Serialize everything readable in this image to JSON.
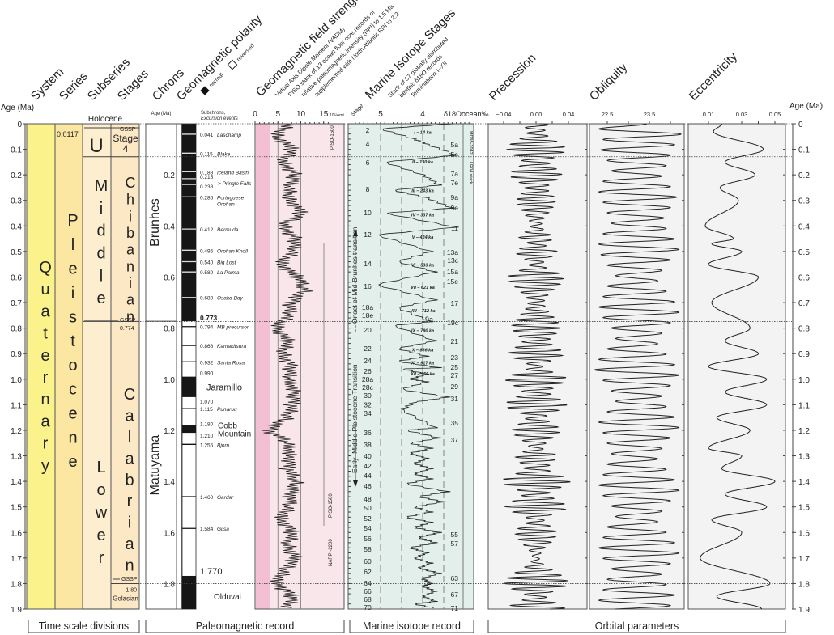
{
  "headers": {
    "system": "System",
    "series": "Series",
    "subseries": "Subseries",
    "stages": "Stages",
    "chrons": "Chrons",
    "polarity": "Geomagnetic polarity",
    "normal": "normal",
    "reversed": "reversed",
    "field": "Geomagnetic field strength",
    "field_sub": [
      "Virtual Axis Dipole Moment (VADM)",
      "PISO stack of 13 ocean floor core records of",
      "relative paleomagnetic intensity (RPI) to 1.5 Ma",
      "supplemented with North Atlantic RPI to 2.2"
    ],
    "mis": "Marine Isotope Stages",
    "mis_sub": [
      "Stack of 57 globally distributed",
      "benthic δ18O records",
      "Terminations I–XII"
    ],
    "precession": "Precession",
    "obliquity": "Obliquity",
    "eccentricity": "Eccentricity"
  },
  "axis": {
    "label": "Age (Ma)",
    "ticks": [
      "0",
      "0.1",
      "0.2",
      "0.3",
      "0.4",
      "0.5",
      "0.6",
      "0.7",
      "0.8",
      "0.9",
      "1.0",
      "1.1",
      "1.2",
      "1.3",
      "1.4",
      "1.5",
      "1.6",
      "1.7",
      "1.8",
      "1.9"
    ]
  },
  "timescale": {
    "holocene": "Holocene",
    "holocene_base": "0.0117",
    "system": "Quaternary",
    "series": "Pleistocene",
    "subseries": [
      {
        "label": "U",
        "from": 0,
        "to": 0.129
      },
      {
        "label": "Middle",
        "from": 0.129,
        "to": 0.774
      },
      {
        "label": "Lower",
        "from": 0.774,
        "to": 1.9
      }
    ],
    "stages": [
      {
        "label": "Stage 4",
        "from": 0,
        "to": 0.129
      },
      {
        "label": "Chibanian",
        "from": 0.129,
        "to": 0.774
      },
      {
        "label": "Calabrian",
        "from": 0.774,
        "to": 1.8
      },
      {
        "label": "Gelasian",
        "from": 1.8,
        "to": 1.9
      }
    ],
    "gssp": "GSSP",
    "gssp_0774": "0.774",
    "gssp_180": "1.80"
  },
  "paleomag": {
    "age_label": "Age (Ma)",
    "age_ticks": [
      "0.2",
      "0.4",
      "0.6",
      "0.8",
      "1.0",
      "1.2",
      "1.4",
      "1.6",
      "1.8"
    ],
    "subchron_header": [
      "Subchrons,",
      "Excursion events"
    ],
    "chrons": [
      {
        "label": "Brunhes",
        "from": 0,
        "to": 0.773
      },
      {
        "label": "Matuyama",
        "from": 0.773,
        "to": 1.9
      }
    ],
    "normal_intervals": [
      [
        0,
        0.773
      ],
      [
        0.99,
        1.07
      ],
      [
        1.18,
        1.21
      ],
      [
        1.77,
        1.9
      ]
    ],
    "events": [
      {
        "age": "0.041",
        "name": "Laschamp"
      },
      {
        "age": "0.115",
        "name": "Blake"
      },
      {
        "age": "0.188",
        "name": "Iceland Basin"
      },
      {
        "age": "0.215",
        "name": ""
      },
      {
        "age": "0.238",
        "name": "Pringle Falls"
      },
      {
        "age": "0.286",
        "name": "Portuguese Orphan"
      },
      {
        "age": "0.412",
        "name": "Bermuda"
      },
      {
        "age": "0.495",
        "name": "Orphan Knoll"
      },
      {
        "age": "0.540",
        "name": "Big Lost"
      },
      {
        "age": "0.580",
        "name": "La Palma"
      },
      {
        "age": "0.680",
        "name": "Osaka Bay"
      },
      {
        "age": "0.794",
        "name": "MB precursor"
      },
      {
        "age": "0.868",
        "name": "Kamakitsura"
      },
      {
        "age": "0.932",
        "name": "Santa Rosa"
      },
      {
        "age": "1.115",
        "name": "Punaruu"
      },
      {
        "age": "1.255",
        "name": "Bjorn"
      },
      {
        "age": "1.460",
        "name": "Gardar"
      },
      {
        "age": "1.584",
        "name": "Gilsa"
      }
    ],
    "boundaries": [
      {
        "age": "0.773"
      },
      {
        "age": "0.990"
      },
      {
        "age": "1.070"
      },
      {
        "age": "1.180"
      },
      {
        "age": "1.210"
      },
      {
        "age": "1.770"
      }
    ],
    "subchrons": [
      {
        "name": "Jaramillo",
        "age": 1.03
      },
      {
        "name": "Cobb",
        "age": 1.18
      },
      {
        "name": "Mountain",
        "age": 1.212
      },
      {
        "name": "Olduvai",
        "age": 1.85
      }
    ]
  },
  "field": {
    "ticks": [
      "0",
      "5",
      "10",
      "15"
    ],
    "unit": "10²²Am²",
    "labels": [
      "PISO-1500",
      "NARPI-2200",
      "PISO-1500"
    ]
  },
  "isotope": {
    "stage_label": "Stage",
    "ticks": [
      "5",
      "4"
    ],
    "unit": "δ18Oocean‰",
    "records": [
      "MD95-2042",
      "LR04 stack"
    ],
    "transitions": [
      "Onset of Mid-Brunhes transition",
      "Early–Middle Pleistocene Transition"
    ],
    "left_stages": [
      [
        "2",
        0.022
      ],
      [
        "4",
        0.076
      ],
      [
        "6",
        0.149
      ],
      [
        "8",
        0.253
      ],
      [
        "10",
        0.345
      ],
      [
        "12",
        0.431
      ],
      [
        "14",
        0.545
      ],
      [
        "16",
        0.633
      ],
      [
        "18a",
        0.716
      ],
      [
        "18e",
        0.744
      ],
      [
        "20",
        0.804
      ],
      [
        "22",
        0.877
      ],
      [
        "24",
        0.924
      ],
      [
        "26",
        0.966
      ],
      [
        "28a",
        0.991
      ],
      [
        "28c",
        1.016
      ],
      [
        "30",
        1.048
      ],
      [
        "32",
        1.098
      ],
      [
        "34",
        1.13
      ],
      [
        "36",
        1.206
      ],
      [
        "38",
        1.254
      ],
      [
        "40",
        1.298
      ],
      [
        "42",
        1.336
      ],
      [
        "44",
        1.374
      ],
      [
        "46",
        1.415
      ],
      [
        "48",
        1.466
      ],
      [
        "50",
        1.501
      ],
      [
        "52",
        1.542
      ],
      [
        "54",
        1.58
      ],
      [
        "56",
        1.621
      ],
      [
        "58",
        1.662
      ],
      [
        "60",
        1.71
      ],
      [
        "62",
        1.751
      ],
      [
        "64",
        1.795
      ],
      [
        "66",
        1.82
      ],
      [
        "68",
        1.849
      ],
      [
        "70",
        1.874
      ]
    ],
    "right_stages": [
      [
        "5a",
        0.079
      ],
      [
        "5e",
        0.117
      ],
      [
        "7a",
        0.193
      ],
      [
        "7e",
        0.228
      ],
      [
        "9a",
        0.285
      ],
      [
        "9e",
        0.326
      ],
      [
        "11",
        0.405
      ],
      [
        "13a",
        0.5
      ],
      [
        "13c",
        0.529
      ],
      [
        "15a",
        0.576
      ],
      [
        "15e",
        0.614
      ],
      [
        "17",
        0.7
      ],
      [
        "19c",
        0.776
      ],
      [
        "21",
        0.849
      ],
      [
        "23",
        0.912
      ],
      [
        "25",
        0.95
      ],
      [
        "27",
        0.981
      ],
      [
        "29",
        1.026
      ],
      [
        "31",
        1.073
      ],
      [
        "35",
        1.168
      ],
      [
        "37",
        1.235
      ],
      [
        "55",
        1.605
      ],
      [
        "57",
        1.64
      ],
      [
        "63",
        1.776
      ],
      [
        "67",
        1.839
      ],
      [
        "71",
        1.893
      ]
    ],
    "inner_stages": [
      [
        "19a",
        0.767
      ]
    ],
    "terminations": [
      [
        "I – 14 ka",
        0.014
      ],
      [
        "II – 130 ka",
        0.13
      ],
      [
        "III – 243 ka",
        0.243
      ],
      [
        "IV – 337 ka",
        0.337
      ],
      [
        "V – 424 ka",
        0.424
      ],
      [
        "VI – 533 ka",
        0.533
      ],
      [
        "VII – 621 ka",
        0.621
      ],
      [
        "VIII – 712 ka",
        0.712
      ],
      [
        "IX – 790 ka",
        0.79
      ],
      [
        "X – 866 ka",
        0.866
      ],
      [
        "XI – 917 ka",
        0.917
      ],
      [
        "XII – 959 ka",
        0.959
      ]
    ]
  },
  "orbital": {
    "precession_ticks": [
      "−0.04",
      "0.00",
      "0.04"
    ],
    "obliquity_ticks": [
      "22.5",
      "23.5"
    ],
    "eccentricity_ticks": [
      "0.01",
      "0.03",
      "0.05"
    ]
  },
  "groups": [
    "Time scale divisions",
    "Paleomagnetic record",
    "Marine isotope record",
    "Orbital parameters"
  ],
  "colors": {
    "system": "#fcf28c",
    "series": "#fbe6a2",
    "subseries": "#fdeed0",
    "stages": "#fde8c6",
    "field_bg": "#f8e6ea",
    "field_strip": "#f3bfd3",
    "isotope_bg": "#e2efeb",
    "orbital_bg": "#f3f3f3"
  },
  "chart_data": {
    "type": "line",
    "y_axis": {
      "label": "Age (Ma)",
      "range": [
        0,
        1.9
      ],
      "reversed": true
    },
    "vadm": {
      "xlim": [
        0,
        16
      ],
      "step_ma": 0.05,
      "values": [
        7,
        5,
        8,
        6,
        9,
        7,
        8,
        10,
        6,
        9,
        8,
        6,
        9,
        11,
        8,
        7,
        5,
        7,
        6,
        8,
        7,
        9,
        8,
        7,
        3,
        7,
        8,
        7,
        9,
        8,
        7,
        6,
        8,
        7,
        9,
        6,
        5,
        8,
        7
      ]
    },
    "d18o": {
      "xlim": [
        5.8,
        2.8
      ],
      "points": [
        [
          0,
          3.3
        ],
        [
          0.02,
          5.0
        ],
        [
          0.06,
          4.2
        ],
        [
          0.08,
          3.9
        ],
        [
          0.123,
          3.2
        ],
        [
          0.15,
          4.9
        ],
        [
          0.2,
          4.0
        ],
        [
          0.24,
          3.6
        ],
        [
          0.26,
          4.7
        ],
        [
          0.29,
          3.9
        ],
        [
          0.33,
          3.3
        ],
        [
          0.35,
          4.9
        ],
        [
          0.405,
          3.2
        ],
        [
          0.435,
          5.1
        ],
        [
          0.5,
          3.8
        ],
        [
          0.54,
          4.6
        ],
        [
          0.58,
          3.7
        ],
        [
          0.63,
          5.1
        ],
        [
          0.69,
          3.7
        ],
        [
          0.72,
          4.6
        ],
        [
          0.775,
          3.8
        ],
        [
          0.79,
          4.7
        ],
        [
          0.85,
          3.7
        ],
        [
          0.88,
          4.6
        ],
        [
          0.91,
          3.9
        ],
        [
          0.93,
          4.6
        ],
        [
          0.955,
          3.6
        ],
        [
          0.96,
          4.5
        ],
        [
          0.98,
          3.9
        ],
        [
          1.0,
          4.3
        ],
        [
          1.01,
          3.9
        ],
        [
          1.04,
          4.5
        ],
        [
          1.07,
          3.4
        ],
        [
          1.09,
          4.2
        ],
        [
          1.12,
          4.5
        ],
        [
          1.19,
          3.7
        ],
        [
          1.2,
          4.4
        ],
        [
          1.23,
          3.6
        ],
        [
          1.25,
          4.3
        ],
        [
          1.27,
          3.8
        ],
        [
          1.29,
          4.3
        ],
        [
          1.31,
          3.9
        ],
        [
          1.33,
          4.2
        ],
        [
          1.35,
          3.8
        ],
        [
          1.37,
          4.2
        ],
        [
          1.39,
          3.8
        ],
        [
          1.41,
          4.4
        ],
        [
          1.44,
          3.4
        ],
        [
          1.46,
          4.1
        ],
        [
          1.48,
          3.5
        ],
        [
          1.5,
          4.2
        ],
        [
          1.52,
          3.8
        ],
        [
          1.54,
          4.4
        ],
        [
          1.56,
          3.8
        ],
        [
          1.58,
          4.2
        ],
        [
          1.6,
          3.6
        ],
        [
          1.62,
          4.1
        ],
        [
          1.64,
          3.7
        ],
        [
          1.66,
          4.3
        ],
        [
          1.68,
          3.9
        ],
        [
          1.7,
          4.2
        ],
        [
          1.72,
          3.8
        ],
        [
          1.74,
          4.1
        ],
        [
          1.76,
          3.6
        ],
        [
          1.78,
          4.0
        ],
        [
          1.8,
          3.8
        ],
        [
          1.81,
          4.0
        ],
        [
          1.83,
          3.7
        ],
        [
          1.85,
          4.0
        ],
        [
          1.87,
          3.7
        ],
        [
          1.88,
          4.2
        ],
        [
          1.9,
          3.6
        ]
      ]
    },
    "eccentricity": {
      "xlim": [
        0.0,
        0.06
      ],
      "turning_points": [
        [
          0,
          0.018
        ],
        [
          0.03,
          0.013
        ],
        [
          0.1,
          0.043
        ],
        [
          0.15,
          0.02
        ],
        [
          0.2,
          0.038
        ],
        [
          0.25,
          0.017
        ],
        [
          0.3,
          0.028
        ],
        [
          0.4,
          0.008
        ],
        [
          0.45,
          0.025
        ],
        [
          0.47,
          0.012
        ],
        [
          0.5,
          0.03
        ],
        [
          0.55,
          0.01
        ],
        [
          0.6,
          0.04
        ],
        [
          0.7,
          0.012
        ],
        [
          0.8,
          0.035
        ],
        [
          0.85,
          0.02
        ],
        [
          0.9,
          0.04
        ],
        [
          0.95,
          0.01
        ],
        [
          1.0,
          0.045
        ],
        [
          1.05,
          0.02
        ],
        [
          1.1,
          0.045
        ],
        [
          1.15,
          0.015
        ],
        [
          1.2,
          0.035
        ],
        [
          1.27,
          0.01
        ],
        [
          1.3,
          0.03
        ],
        [
          1.35,
          0.018
        ],
        [
          1.4,
          0.05
        ],
        [
          1.45,
          0.02
        ],
        [
          1.5,
          0.045
        ],
        [
          1.55,
          0.012
        ],
        [
          1.6,
          0.03
        ],
        [
          1.7,
          0.005
        ],
        [
          1.8,
          0.047
        ],
        [
          1.85,
          0.015
        ],
        [
          1.9,
          0.042
        ]
      ]
    },
    "obliquity": {
      "xlim": [
        22.08,
        24.33
      ],
      "half_period_ma": 0.0205,
      "extremes": [
        23.44,
        22.3,
        24.25,
        22.4,
        24.1,
        22.35,
        24.0,
        22.5,
        23.9,
        22.6,
        23.8,
        22.4,
        24.0,
        22.3,
        24.15,
        22.4,
        24.0,
        22.5,
        23.85,
        22.6,
        23.9,
        22.4,
        24.1,
        22.3,
        24.2,
        22.35,
        24.0,
        22.5,
        23.8,
        22.7,
        23.7,
        22.5,
        23.9,
        22.4,
        24.1,
        22.3,
        24.2,
        22.4,
        24.0,
        22.6,
        23.8,
        22.7,
        23.7,
        22.5,
        23.9,
        22.3,
        24.1,
        22.2,
        24.2,
        22.4,
        24.0,
        22.6,
        23.8,
        22.7,
        23.9,
        22.5,
        24.1,
        22.3,
        24.2,
        22.4,
        24.0,
        22.5,
        23.8,
        22.6,
        23.7,
        22.5,
        23.9,
        22.4,
        24.1,
        22.3,
        24.2,
        22.4,
        24.0,
        22.6,
        23.8,
        22.7,
        23.7,
        22.5,
        23.9,
        22.4,
        24.1,
        22.3,
        24.2,
        22.4,
        24.0,
        22.6,
        23.8,
        22.5,
        23.9,
        22.4,
        24.1,
        22.3,
        24.0
      ]
    },
    "precession": {
      "xlim": [
        -0.06,
        0.06
      ],
      "period_ma": 0.0215,
      "envelope": "eccentricity"
    }
  }
}
